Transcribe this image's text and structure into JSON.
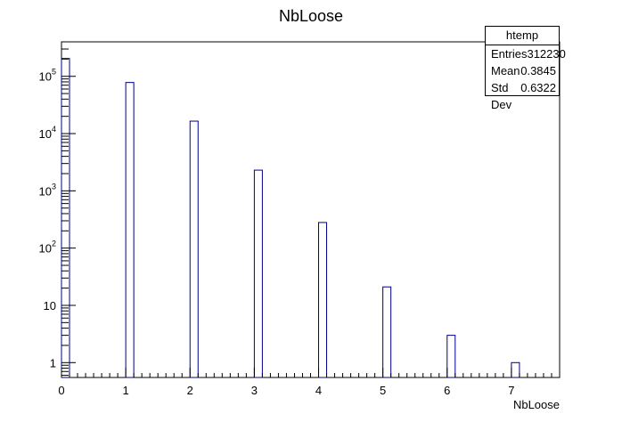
{
  "chart_data": {
    "type": "histogram",
    "title": "NbLoose",
    "xlabel": "NbLoose",
    "ylabel": "",
    "xlim": [
      0,
      7.75
    ],
    "ylim": [
      0.55,
      400000
    ],
    "yscale": "log",
    "bin_width": 0.125,
    "bins": [
      {
        "x": 0,
        "y": 205000
      },
      {
        "x": 1,
        "y": 78000
      },
      {
        "x": 2,
        "y": 16500
      },
      {
        "x": 3,
        "y": 2300
      },
      {
        "x": 4,
        "y": 280
      },
      {
        "x": 5,
        "y": 21
      },
      {
        "x": 6,
        "y": 3
      },
      {
        "x": 7,
        "y": 1
      }
    ],
    "x_ticks": [
      "0",
      "1",
      "2",
      "3",
      "4",
      "5",
      "6",
      "7"
    ],
    "y_ticks": [
      {
        "v": 1,
        "base": "1",
        "exp": ""
      },
      {
        "v": 10,
        "base": "10",
        "exp": ""
      },
      {
        "v": 100,
        "base": "10",
        "exp": "2"
      },
      {
        "v": 1000,
        "base": "10",
        "exp": "3"
      },
      {
        "v": 10000,
        "base": "10",
        "exp": "4"
      },
      {
        "v": 100000,
        "base": "10",
        "exp": "5"
      }
    ],
    "colors": {
      "bar": "#00008b",
      "axis": "#000000"
    }
  },
  "stats_box": {
    "name": "htemp",
    "entries_label": "Entries",
    "entries_value": "312230",
    "mean_label": "Mean",
    "mean_value": "0.3845",
    "stddev_label": "Std Dev",
    "stddev_value": "0.6322"
  }
}
